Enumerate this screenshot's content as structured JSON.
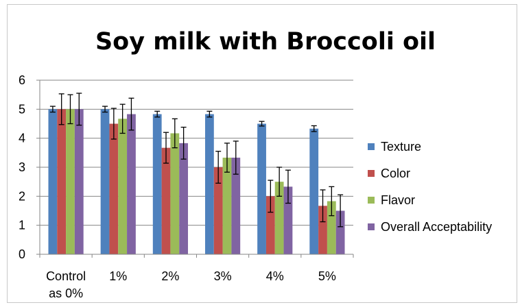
{
  "chart_data": {
    "type": "bar",
    "title": "Soy milk with Broccoli oil",
    "xlabel": "",
    "ylabel": "",
    "ylim": [
      0,
      6
    ],
    "yticks": [
      0,
      1,
      2,
      3,
      4,
      5,
      6
    ],
    "grid": true,
    "legend_position": "right",
    "categories": [
      [
        "Control",
        "as 0%"
      ],
      [
        "1%"
      ],
      [
        "2%"
      ],
      [
        "3%"
      ],
      [
        "4%"
      ],
      [
        "5%"
      ]
    ],
    "series": [
      {
        "name": "Texture",
        "color": "#4f81bd",
        "values": [
          5.0,
          5.0,
          4.83,
          4.83,
          4.5,
          4.33
        ],
        "errors": [
          0.1,
          0.1,
          0.1,
          0.1,
          0.08,
          0.1
        ]
      },
      {
        "name": "Color",
        "color": "#c0504d",
        "values": [
          5.0,
          4.5,
          3.67,
          3.0,
          2.0,
          1.67
        ],
        "errors": [
          0.53,
          0.53,
          0.53,
          0.55,
          0.55,
          0.55
        ]
      },
      {
        "name": "Flavor",
        "color": "#9bbb59",
        "values": [
          5.0,
          4.67,
          4.17,
          3.33,
          2.5,
          1.83
        ],
        "errors": [
          0.5,
          0.5,
          0.5,
          0.5,
          0.5,
          0.5
        ]
      },
      {
        "name": "Overall Acceptability",
        "color": "#8064a2",
        "values": [
          5.0,
          4.83,
          3.83,
          3.33,
          2.33,
          1.5
        ],
        "errors": [
          0.55,
          0.55,
          0.55,
          0.57,
          0.57,
          0.55
        ]
      }
    ]
  }
}
